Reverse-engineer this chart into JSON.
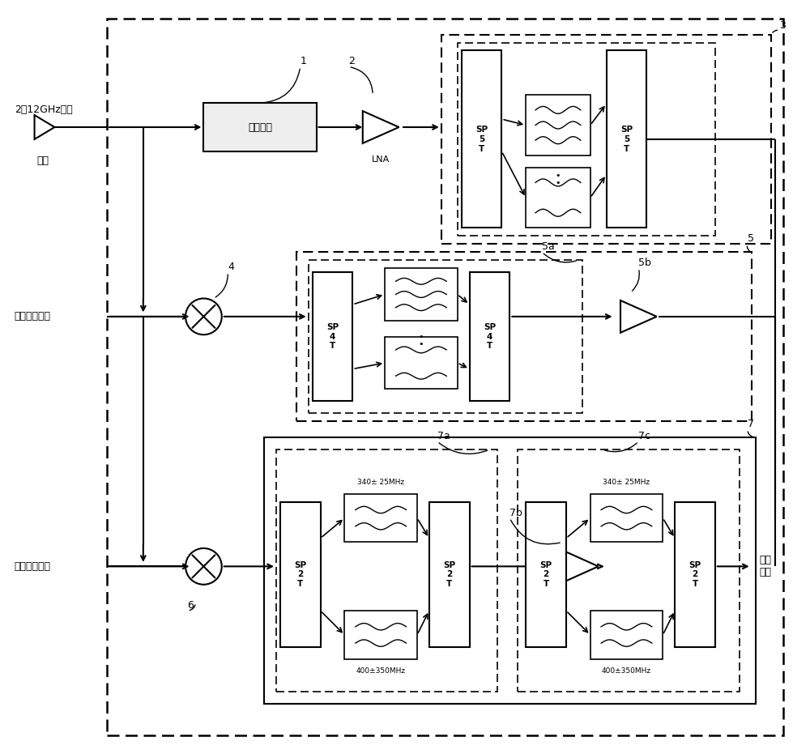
{
  "bg_color": "#ffffff",
  "fig_width": 10.0,
  "fig_height": 9.31,
  "labels": {
    "signal_2_12": "2～12GHz信号",
    "antenna": "天线",
    "limiter": "限幅模块",
    "lna": "LNA",
    "first_lo": "第一本振信号",
    "second_lo": "第二本振信号",
    "if_signal": "中频\n信号",
    "sp5t": "SP\n5\nT",
    "sp4t": "SP\n4\nT",
    "sp2t": "SP\n2\nT",
    "filter_340_25": "340± 25MHz",
    "filter_400_350": "400±350MHz",
    "num1": "1",
    "num2": "2",
    "num3": "3",
    "num4": "4",
    "num5": "5",
    "num5a": "5a",
    "num5b": "5b",
    "num6": "6",
    "num7": "7",
    "num7a": "7a",
    "num7b": "7b",
    "num7c": "7c"
  }
}
